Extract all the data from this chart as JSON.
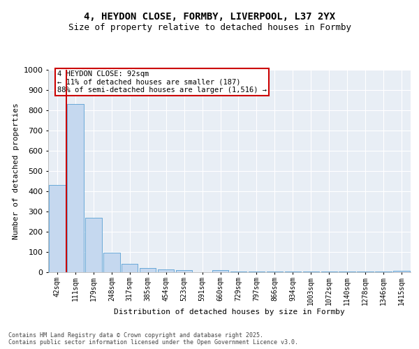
{
  "title": "4, HEYDON CLOSE, FORMBY, LIVERPOOL, L37 2YX",
  "subtitle": "Size of property relative to detached houses in Formby",
  "xlabel": "Distribution of detached houses by size in Formby",
  "ylabel": "Number of detached properties",
  "bar_values": [
    430,
    830,
    270,
    95,
    43,
    22,
    15,
    10,
    0,
    10,
    5,
    2,
    2,
    2,
    2,
    2,
    2,
    2,
    2,
    8
  ],
  "bin_labels": [
    "42sqm",
    "111sqm",
    "179sqm",
    "248sqm",
    "317sqm",
    "385sqm",
    "454sqm",
    "523sqm",
    "591sqm",
    "660sqm",
    "729sqm",
    "797sqm",
    "866sqm",
    "934sqm",
    "1003sqm",
    "1072sqm",
    "1140sqm",
    "1278sqm",
    "1346sqm",
    "1415sqm"
  ],
  "bar_color": "#c5d8ef",
  "bar_edge_color": "#6baad8",
  "annotation_text": "4 HEYDON CLOSE: 92sqm\n← 11% of detached houses are smaller (187)\n88% of semi-detached houses are larger (1,516) →",
  "vline_x": 0.5,
  "vline_color": "#cc0000",
  "annotation_box_color": "#cc0000",
  "ylim": [
    0,
    1000
  ],
  "yticks": [
    0,
    100,
    200,
    300,
    400,
    500,
    600,
    700,
    800,
    900,
    1000
  ],
  "background_color": "#e8eef5",
  "grid_color": "#ffffff",
  "footer_text": "Contains HM Land Registry data © Crown copyright and database right 2025.\nContains public sector information licensed under the Open Government Licence v3.0.",
  "title_fontsize": 10,
  "subtitle_fontsize": 9,
  "tick_fontsize": 7,
  "ylabel_fontsize": 8,
  "xlabel_fontsize": 8,
  "footer_fontsize": 6
}
